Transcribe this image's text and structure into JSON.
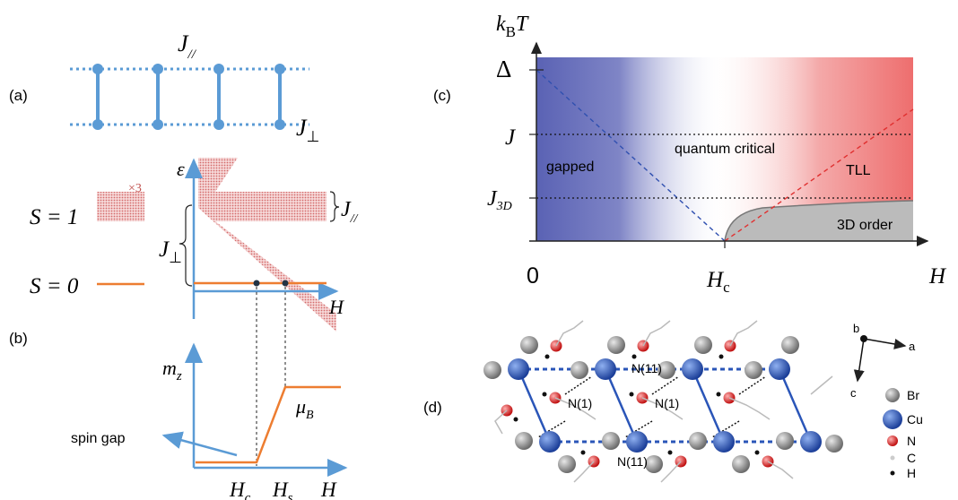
{
  "panel_labels": {
    "a": "(a)",
    "b": "(b)",
    "c": "(c)",
    "d": "(d)"
  },
  "ladder": {
    "j_parallel": "J",
    "j_parallel_sub": "//",
    "j_perp": "J",
    "j_perp_sub": "⊥"
  },
  "energy": {
    "axis_y": "ε",
    "axis_x": "H",
    "s1_label": "S = 1",
    "s0_label": "S = 0",
    "triplet_mult": "×3",
    "brace_perp": "J",
    "brace_perp_sub": "⊥",
    "brace_par": "J",
    "brace_par_sub": "//"
  },
  "magnetization": {
    "axis_y": "m",
    "axis_y_sub": "z",
    "sat_label": "μ",
    "sat_sub": "B",
    "spin_gap": "spin gap",
    "hc": "H",
    "hc_sub": "c",
    "hs": "H",
    "hs_sub": "s",
    "axis_x": "H"
  },
  "phase_diagram": {
    "axis_y": "k",
    "axis_y_sub": "B",
    "axis_y_T": "T",
    "axis_x": "H",
    "delta": "Δ",
    "j": "J",
    "j3d": "J",
    "j3d_sub": "3D",
    "zero": "0",
    "hc": "H",
    "hc_sub": "c",
    "regions": {
      "gapped": "gapped",
      "critical": "quantum critical",
      "tll": "TLL",
      "order": "3D order"
    },
    "colors": {
      "gapped": "#5a62b4",
      "tll": "#ee6e6e",
      "order": "#bbbbbb"
    }
  },
  "structure": {
    "labels": {
      "n11_top": "N(11)",
      "n1_a": "N(1)",
      "n1_b": "N(1)",
      "n11_bottom": "N(11)"
    },
    "axes": {
      "a": "a",
      "b": "b",
      "c": "c"
    },
    "legend": [
      {
        "label": "Br",
        "color": "#9a9a9a"
      },
      {
        "label": "Cu",
        "color": "#2a55b8"
      },
      {
        "label": "N",
        "color": "#e02424"
      },
      {
        "label": "C",
        "color": "#cccccc"
      },
      {
        "label": "H",
        "color": "#111111"
      }
    ]
  },
  "colors": {
    "blue": "#5b9bd5",
    "orange": "#ed7d31",
    "band": "#e8a6a6"
  }
}
